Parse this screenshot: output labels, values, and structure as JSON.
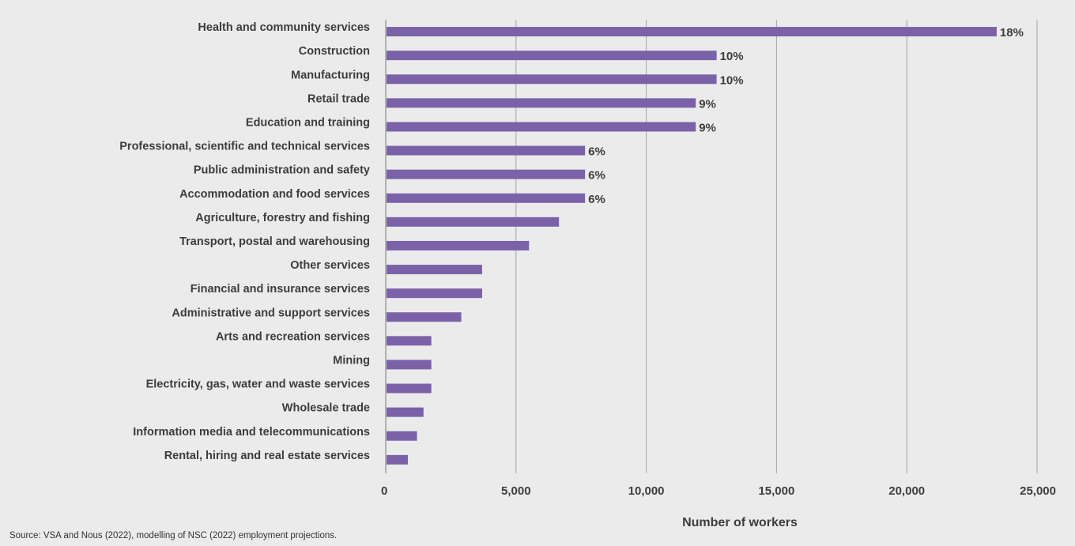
{
  "chart_data": {
    "type": "bar",
    "orientation": "horizontal",
    "categories": [
      "Health and community services",
      "Construction",
      "Manufacturing",
      "Retail trade",
      "Education and training",
      "Professional, scientific and technical services",
      "Public administration and safety",
      "Accommodation and food services",
      "Agriculture, forestry and fishing",
      "Transport, postal and warehousing",
      "Other services",
      "Financial and insurance services",
      "Administrative and support services",
      "Arts and recreation services",
      "Mining",
      "Electricity, gas, water and waste services",
      "Wholesale trade",
      "Information media and telecommunications",
      "Rental, hiring and real estate services"
    ],
    "values": [
      23450,
      12700,
      12700,
      11900,
      11900,
      7650,
      7650,
      7650,
      6650,
      5500,
      3700,
      3700,
      2900,
      1750,
      1750,
      1750,
      1450,
      1200,
      850
    ],
    "data_labels": [
      "18%",
      "10%",
      "10%",
      "9%",
      "9%",
      "6%",
      "6%",
      "6%",
      "",
      "",
      "",
      "",
      "",
      "",
      "",
      "",
      "",
      "",
      ""
    ],
    "xlim": [
      0,
      25000
    ],
    "xticks": [
      0,
      5000,
      10000,
      15000,
      20000,
      25000
    ],
    "xtick_labels": [
      "0",
      "5,000",
      "10,000",
      "15,000",
      "20,000",
      "25,000"
    ],
    "xlabel": "Number of workers",
    "ylabel": "",
    "grid": "vertical",
    "legend": "none",
    "bar_color": "#7b62a8"
  },
  "source_note": "Source: VSA and Nous (2022), modelling of NSC (2022) employment projections."
}
